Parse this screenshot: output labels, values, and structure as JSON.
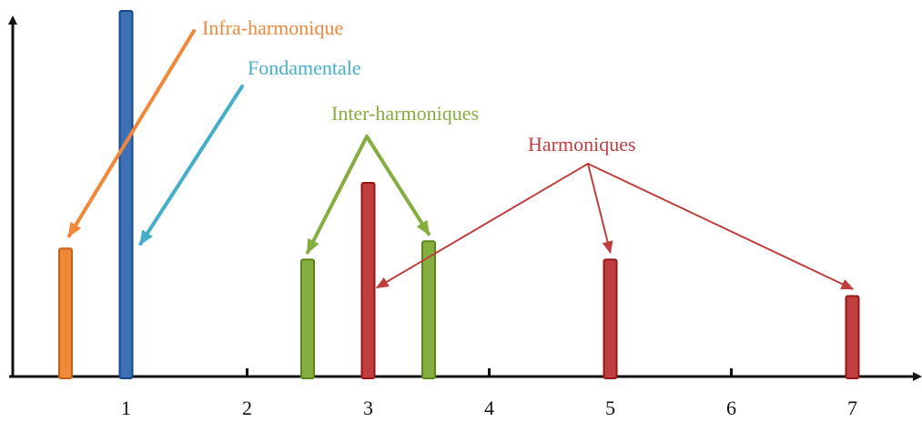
{
  "chart_data": {
    "type": "bar",
    "title": "",
    "xlabel": "",
    "ylabel": "",
    "x_ticks": [
      "1",
      "2",
      "3",
      "4",
      "5",
      "6",
      "7"
    ],
    "xlim": [
      0.5,
      8.0
    ],
    "ylim": [
      0,
      1.0
    ],
    "grid": false,
    "bars": [
      {
        "x": 0.5,
        "value": 0.35,
        "kind": "infra",
        "color": "#f0883a"
      },
      {
        "x": 1.0,
        "value": 1.0,
        "kind": "fund",
        "color": "#3d6fb5"
      },
      {
        "x": 2.5,
        "value": 0.32,
        "kind": "inter",
        "color": "#86ad3f"
      },
      {
        "x": 3.0,
        "value": 0.53,
        "kind": "harm",
        "color": "#bf3f3f"
      },
      {
        "x": 3.5,
        "value": 0.37,
        "kind": "inter",
        "color": "#86ad3f"
      },
      {
        "x": 5.0,
        "value": 0.32,
        "kind": "harm",
        "color": "#bf3f3f"
      },
      {
        "x": 7.0,
        "value": 0.22,
        "kind": "harm",
        "color": "#bf3f3f"
      }
    ],
    "annotations": [
      {
        "key": "infra",
        "text": "Infra-harmonique",
        "color": "#f0883a"
      },
      {
        "key": "fund",
        "text": "Fondamentale",
        "color": "#45aec9"
      },
      {
        "key": "inter",
        "text": "Inter-harmoniques",
        "color": "#86ad3f"
      },
      {
        "key": "harm",
        "text": "Harmoniques",
        "color": "#bf3f3f"
      }
    ]
  }
}
